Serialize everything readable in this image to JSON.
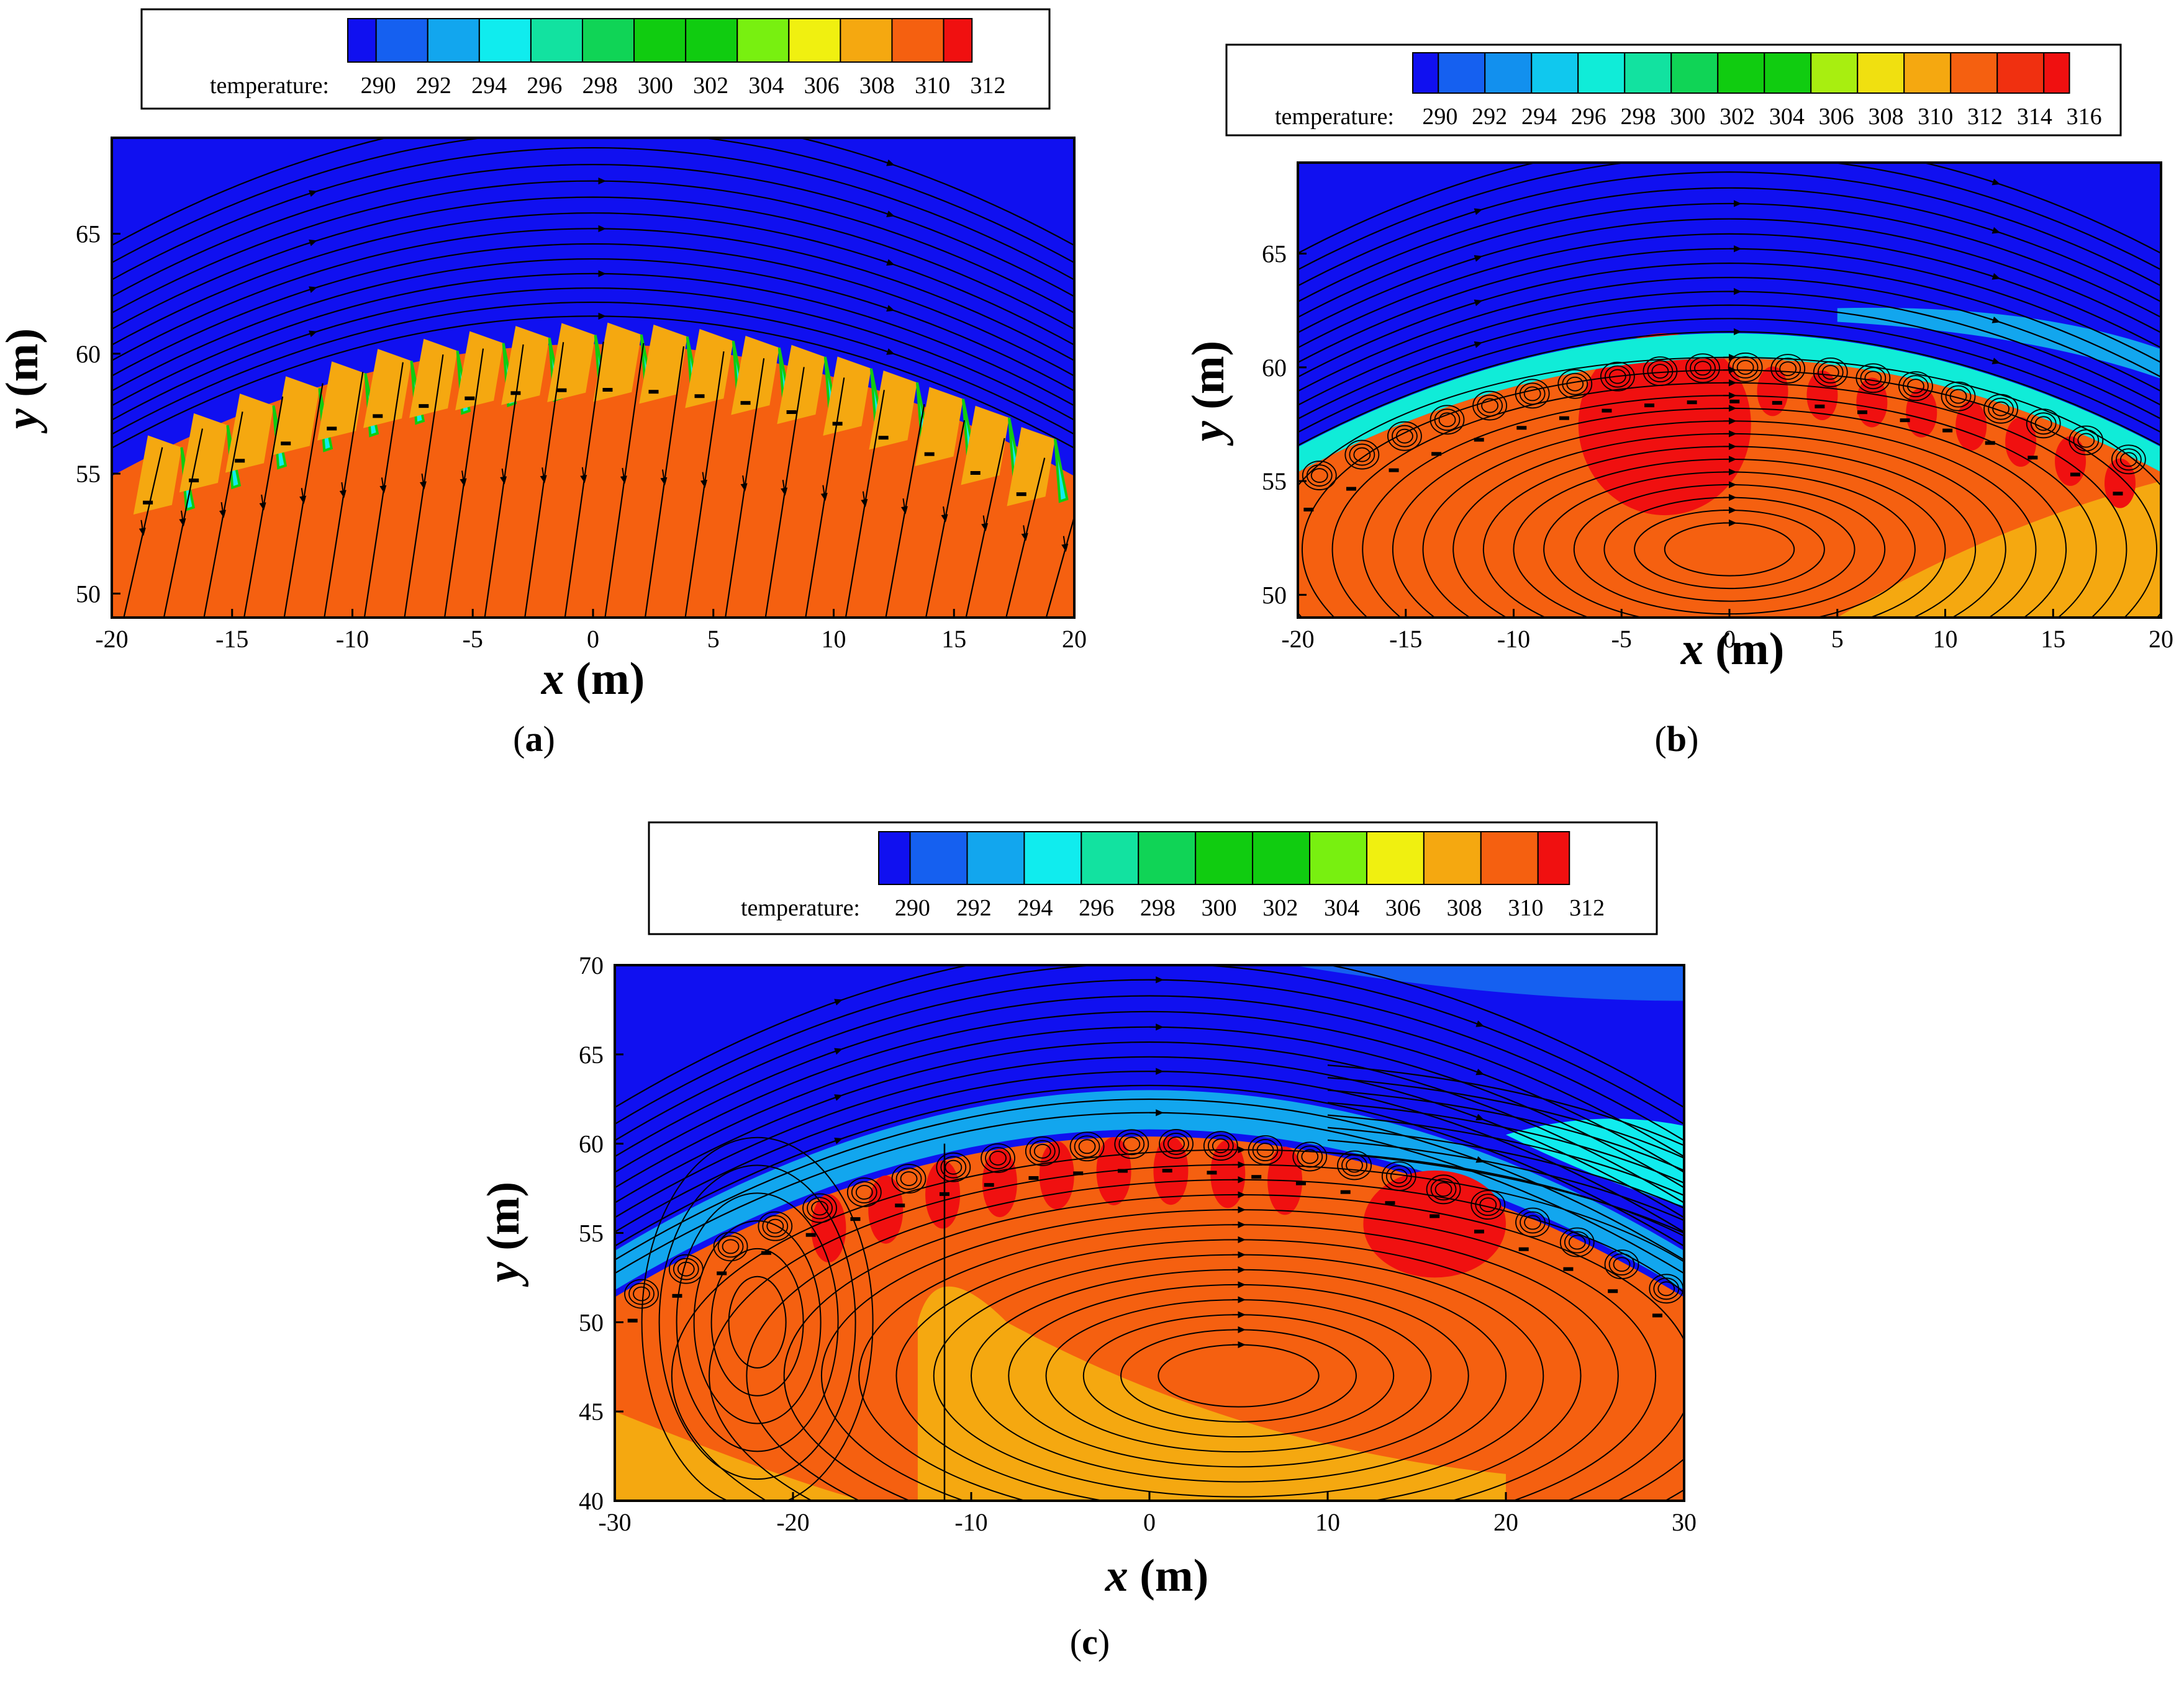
{
  "figure_description_title": "",
  "colors": {
    "palette_12": [
      "#1010f0",
      "#1560f0",
      "#12a6ee",
      "#10ecee",
      "#12e2a0",
      "#10d456",
      "#10cc10",
      "#10cc10",
      "#78f010",
      "#f0f010",
      "#f5a810",
      "#f56010",
      "#f01010"
    ],
    "streamline": "#000000",
    "frame": "#000000"
  },
  "chart_data": [
    {
      "id": "a",
      "type": "contour",
      "panel_label": "a",
      "xlabel_var": "x",
      "xlabel_unit": " (m)",
      "ylabel_var": "y",
      "ylabel_unit": " (m)",
      "xlim": [
        -20,
        20
      ],
      "ylim": [
        49,
        69
      ],
      "xticks": [
        -20,
        -15,
        -10,
        -5,
        0,
        5,
        10,
        15,
        20
      ],
      "yticks": [
        50,
        55,
        60,
        65
      ],
      "legend": {
        "label": "temperature:",
        "levels": [
          290,
          292,
          294,
          296,
          298,
          300,
          302,
          304,
          306,
          308,
          310,
          312
        ]
      },
      "towers": {
        "count": 20,
        "x_start": -18.5,
        "x_end": 17.8,
        "arc_center_y": 61.0,
        "arc_drop": 5.5
      }
    },
    {
      "id": "b",
      "type": "contour",
      "panel_label": "b",
      "xlabel_var": "x",
      "xlabel_unit": " (m)",
      "ylabel_var": "y",
      "ylabel_unit": " (m)",
      "xlim": [
        -20,
        20
      ],
      "ylim": [
        49,
        69
      ],
      "xticks": [
        -20,
        -15,
        -10,
        -5,
        0,
        5,
        10,
        15,
        20
      ],
      "yticks": [
        50,
        55,
        60,
        65
      ],
      "legend": {
        "label": "temperature:",
        "levels": [
          290,
          292,
          294,
          296,
          298,
          300,
          302,
          304,
          306,
          308,
          310,
          312,
          314,
          316
        ]
      },
      "towers": {
        "count": 20,
        "x_start": -19.5,
        "x_end": 18.0,
        "arc_center_y": 61.0,
        "arc_drop": 5.0
      }
    },
    {
      "id": "c",
      "type": "contour",
      "panel_label": "c",
      "xlabel_var": "x",
      "xlabel_unit": " (m)",
      "ylabel_var": "y",
      "ylabel_unit": " (m)",
      "xlim": [
        -30,
        30
      ],
      "ylim": [
        40,
        70
      ],
      "xticks": [
        -30,
        -20,
        -10,
        0,
        10,
        20,
        30
      ],
      "yticks": [
        40,
        45,
        50,
        55,
        60,
        65,
        70
      ],
      "legend": {
        "label": "temperature:",
        "levels": [
          290,
          292,
          294,
          296,
          298,
          300,
          302,
          304,
          306,
          308,
          310,
          312
        ]
      },
      "towers": {
        "count": 24,
        "x_start": -29.0,
        "x_end": 28.5,
        "arc_center_y": 61.0,
        "arc_drop": 9.0
      }
    }
  ]
}
